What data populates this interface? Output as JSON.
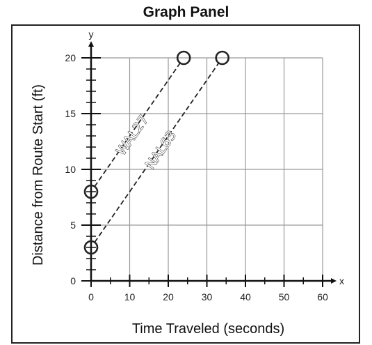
{
  "panel": {
    "title": "Graph Panel"
  },
  "chart_data": {
    "type": "line",
    "xlabel": "Time Traveled (seconds)",
    "ylabel": "Distance from Route Start (ft)",
    "x_axis_letter": "x",
    "y_axis_letter": "y",
    "xlim": [
      0,
      60
    ],
    "ylim": [
      0,
      20
    ],
    "x_ticks": [
      0,
      10,
      20,
      30,
      40,
      50,
      60
    ],
    "y_ticks": [
      0,
      5,
      10,
      15,
      20
    ],
    "grid": true,
    "series": [
      {
        "name": "WAL27",
        "points": [
          [
            0,
            8
          ],
          [
            24,
            20
          ]
        ],
        "style": "dashed",
        "markers": "open-circle"
      },
      {
        "name": "NAL63",
        "points": [
          [
            0,
            3
          ],
          [
            34,
            20
          ]
        ],
        "style": "dashed",
        "markers": "open-circle"
      }
    ],
    "colors": {
      "grid": "#9a9a9a",
      "axis": "#111111",
      "series": "#222222"
    }
  }
}
